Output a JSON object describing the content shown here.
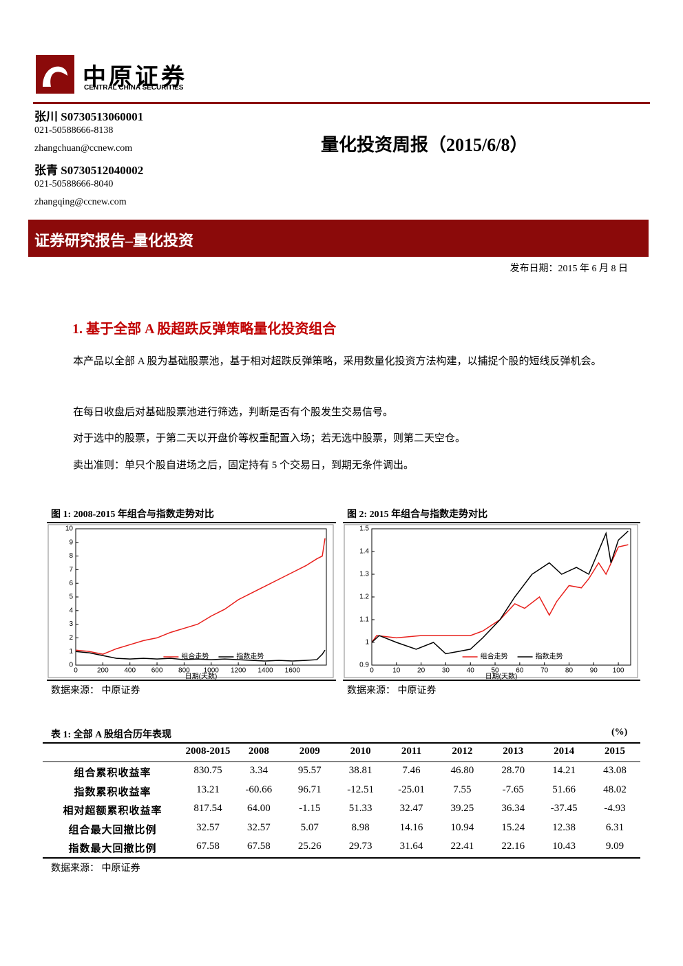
{
  "header": {
    "logo_cn": "中原证券",
    "logo_en": "CENTRAL CHINA SECURITIES"
  },
  "authors": [
    {
      "name": "张川 S0730513060001",
      "phone": "021-50588666-8138",
      "email": "zhangchuan@ccnew.com"
    },
    {
      "name": "张青 S0730512040002",
      "phone": "021-50588666-8040",
      "email": "zhangqing@ccnew.com"
    }
  ],
  "title": "量化投资周报（2015/6/8）",
  "banner": "证券研究报告–量化投资",
  "date": "发布日期：2015 年 6 月 8 日",
  "section": "1. 基于全部 A 股超跌反弹策略量化投资组合",
  "paragraphs": [
    "本产品以全部 A 股为基础股票池，基于相对超跌反弹策略，采用数量化投资方法构建，以捕捉个股的短线反弹机会。",
    "在每日收盘后对基础股票池进行筛选，判断是否有个股发生交易信号。",
    "对于选中的股票，于第二天以开盘价等权重配置入场；若无选中股票，则第二天空仓。",
    "卖出准则：单只个股自进场之后，固定持有 5 个交易日，到期无条件调出。"
  ],
  "figures": [
    {
      "caption": "图 1:  2008-2015 年组合与指数走势对比",
      "source": "数据来源：  中原证券"
    },
    {
      "caption": "图 2:  2015 年组合与指数走势对比",
      "source": "数据来源：  中原证券"
    }
  ],
  "chart_data": [
    {
      "type": "line",
      "x_label": "日期(天数)",
      "xlim": [
        0,
        1850
      ],
      "xticks": [
        0,
        200,
        400,
        600,
        800,
        1000,
        1200,
        1400,
        1600
      ],
      "ylim": [
        0,
        10
      ],
      "yticks": [
        0,
        1,
        2,
        3,
        4,
        5,
        6,
        7,
        8,
        9,
        10
      ],
      "legend": "bottom",
      "series": [
        {
          "name": "组合走势",
          "color": "#e8201c",
          "x": [
            0,
            100,
            200,
            300,
            400,
            500,
            600,
            700,
            800,
            900,
            1000,
            1100,
            1200,
            1300,
            1400,
            1500,
            1600,
            1700,
            1780,
            1820,
            1840
          ],
          "values": [
            1.1,
            1.0,
            0.8,
            1.2,
            1.5,
            1.8,
            2.0,
            2.4,
            2.7,
            3.0,
            3.6,
            4.1,
            4.8,
            5.3,
            5.8,
            6.3,
            6.8,
            7.3,
            7.8,
            8.0,
            9.3
          ]
        },
        {
          "name": "指数走势",
          "color": "#000000",
          "x": [
            0,
            100,
            200,
            300,
            400,
            500,
            600,
            700,
            800,
            900,
            1000,
            1100,
            1200,
            1300,
            1400,
            1500,
            1600,
            1700,
            1780,
            1820,
            1840
          ],
          "values": [
            1.0,
            0.9,
            0.7,
            0.5,
            0.45,
            0.5,
            0.45,
            0.5,
            0.4,
            0.45,
            0.4,
            0.45,
            0.4,
            0.35,
            0.3,
            0.35,
            0.3,
            0.35,
            0.4,
            0.8,
            1.1
          ]
        }
      ]
    },
    {
      "type": "line",
      "x_label": "日期(天数)",
      "xlim": [
        0,
        105
      ],
      "xticks": [
        0,
        10,
        20,
        30,
        40,
        50,
        60,
        70,
        80,
        90,
        100
      ],
      "ylim": [
        0.9,
        1.5
      ],
      "yticks": [
        0.9,
        1,
        1.1,
        1.2,
        1.3,
        1.4,
        1.5
      ],
      "legend": "bottom",
      "series": [
        {
          "name": "组合走势",
          "color": "#e8201c",
          "x": [
            0,
            2,
            10,
            20,
            30,
            40,
            45,
            52,
            58,
            62,
            68,
            72,
            75,
            80,
            85,
            88,
            92,
            95,
            100,
            104
          ],
          "values": [
            1.0,
            1.03,
            1.02,
            1.03,
            1.03,
            1.03,
            1.05,
            1.1,
            1.17,
            1.15,
            1.2,
            1.12,
            1.18,
            1.25,
            1.24,
            1.28,
            1.35,
            1.3,
            1.42,
            1.43
          ]
        },
        {
          "name": "指数走势",
          "color": "#000000",
          "x": [
            0,
            3,
            10,
            18,
            25,
            30,
            35,
            40,
            45,
            52,
            58,
            65,
            72,
            77,
            83,
            88,
            95,
            97,
            100,
            104
          ],
          "values": [
            1.0,
            1.03,
            1.0,
            0.97,
            1.0,
            0.95,
            0.96,
            0.97,
            1.02,
            1.1,
            1.2,
            1.3,
            1.35,
            1.3,
            1.33,
            1.3,
            1.48,
            1.35,
            1.45,
            1.49
          ]
        }
      ]
    }
  ],
  "table": {
    "caption": "表 1:  全部 A 股组合历年表现",
    "unit": "(%)",
    "header": [
      "2008-2015",
      "2008",
      "2009",
      "2010",
      "2011",
      "2012",
      "2013",
      "2014",
      "2015"
    ],
    "rows": [
      [
        "组合累积收益率",
        "830.75",
        "3.34",
        "95.57",
        "38.81",
        "7.46",
        "46.80",
        "28.70",
        "14.21",
        "43.08"
      ],
      [
        "指数累积收益率",
        "13.21",
        "-60.66",
        "96.71",
        "-12.51",
        "-25.01",
        "7.55",
        "-7.65",
        "51.66",
        "48.02"
      ],
      [
        "相对超额累积收益率",
        "817.54",
        "64.00",
        "-1.15",
        "51.33",
        "32.47",
        "39.25",
        "36.34",
        "-37.45",
        "-4.93"
      ],
      [
        "组合最大回撤比例",
        "32.57",
        "32.57",
        "5.07",
        "8.98",
        "14.16",
        "10.94",
        "15.24",
        "12.38",
        "6.31"
      ],
      [
        "指数最大回撤比例",
        "67.58",
        "67.58",
        "25.26",
        "29.73",
        "31.64",
        "22.41",
        "22.16",
        "10.43",
        "9.09"
      ]
    ],
    "source": "数据来源：  中原证券"
  }
}
